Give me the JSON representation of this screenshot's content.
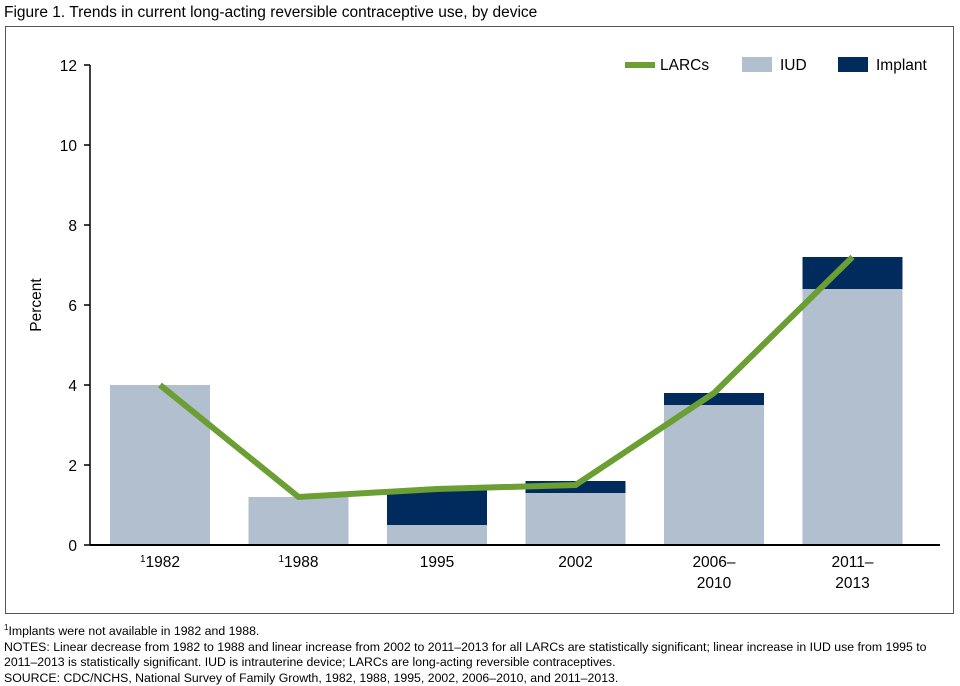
{
  "title": "Figure 1. Trends in current long-acting reversible contraceptive use, by device",
  "chart_data": {
    "type": "bar",
    "stacked": true,
    "title": "Figure 1. Trends in current long-acting reversible contraceptive use, by device",
    "ylabel": "Percent",
    "xlabel": "",
    "ylim": [
      0,
      12
    ],
    "yticks": [
      0,
      2,
      4,
      6,
      8,
      10,
      12
    ],
    "grid": false,
    "legend_position": "top-right",
    "categories": [
      {
        "sup": "1",
        "lines": [
          "1982"
        ]
      },
      {
        "sup": "1",
        "lines": [
          "1988"
        ]
      },
      {
        "sup": "",
        "lines": [
          "1995"
        ]
      },
      {
        "sup": "",
        "lines": [
          "2002"
        ]
      },
      {
        "sup": "",
        "lines": [
          "2006–",
          "2010"
        ]
      },
      {
        "sup": "",
        "lines": [
          "2011–",
          "2013"
        ]
      }
    ],
    "series": [
      {
        "name": "IUD",
        "kind": "bar",
        "color": "#b2bfce",
        "values": [
          4.0,
          1.2,
          0.5,
          1.3,
          3.5,
          6.4
        ]
      },
      {
        "name": "Implant",
        "kind": "bar",
        "color": "#002b5c",
        "values": [
          0,
          0,
          0.9,
          0.3,
          0.3,
          0.8
        ]
      },
      {
        "name": "LARCs",
        "kind": "line",
        "color": "#6b9e33",
        "values": [
          4.0,
          1.2,
          1.4,
          1.5,
          3.8,
          7.2
        ]
      }
    ]
  },
  "notes": {
    "footnote_sup": "1",
    "footnote": "Implants were not available in 1982 and 1988.",
    "notes": "NOTES: Linear decrease from 1982 to 1988 and linear increase from 2002 to 2011–2013 for all LARCs are statistically significant; linear increase in IUD use from 1995 to 2011–2013 is statistically significant. IUD is intrauterine device; LARCs are long-acting reversible contraceptives.",
    "source": "SOURCE: CDC/NCHS, National Survey of Family Growth, 1982, 1988, 1995, 2002, 2006–2010, and 2011–2013."
  }
}
